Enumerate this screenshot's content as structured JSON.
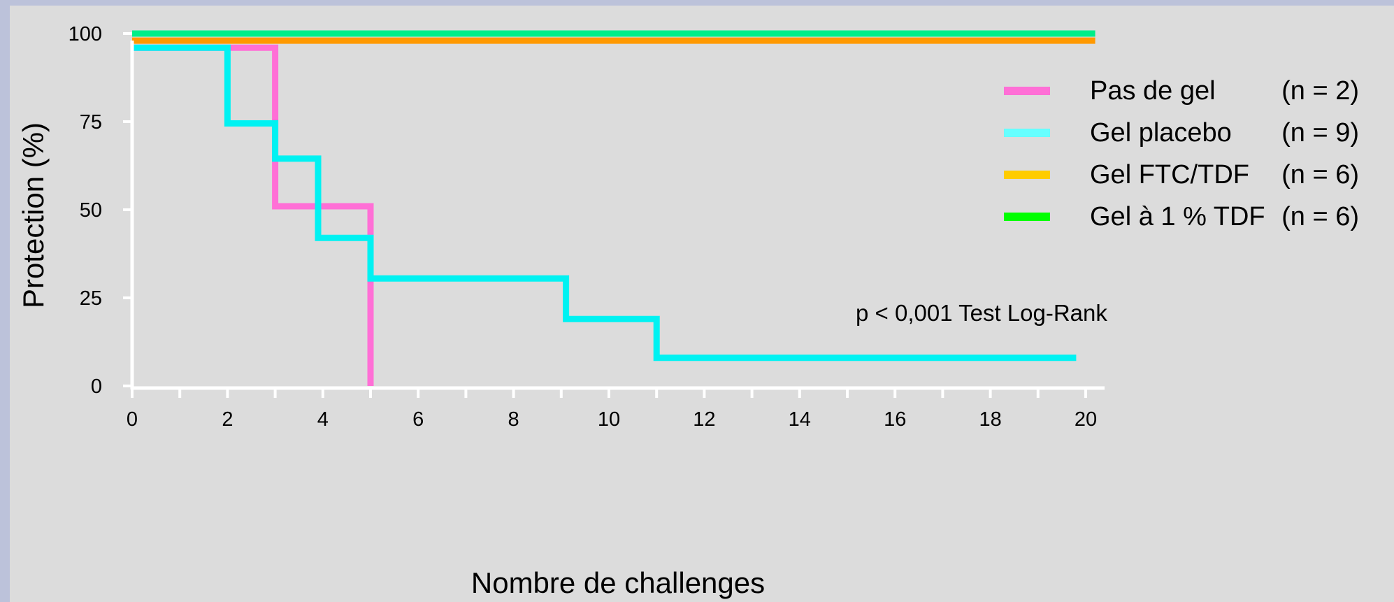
{
  "chart_data": {
    "type": "line",
    "step": true,
    "xlabel": "Nombre de challenges",
    "ylabel": "Protection (%)",
    "xlim": [
      0,
      20
    ],
    "ylim": [
      0,
      100
    ],
    "x_ticks": [
      "0",
      "2",
      "4",
      "6",
      "8",
      "10",
      "12",
      "14",
      "16",
      "18",
      "20"
    ],
    "y_ticks": [
      "0",
      "25",
      "50",
      "75",
      "100"
    ],
    "grid": false,
    "legend_position": "right",
    "annotation": "p < 0,001 Test Log-Rank",
    "series": [
      {
        "name": "Pas de gel",
        "n_label": "(n = 2)",
        "color": "#ff6fd6",
        "legend_color": "#ff6fd6",
        "points": [
          [
            0,
            96
          ],
          [
            3,
            96
          ],
          [
            3,
            51
          ],
          [
            5,
            51
          ],
          [
            5,
            0
          ]
        ]
      },
      {
        "name": "Gel placebo",
        "n_label": "(n = 9)",
        "color": "#00f2f2",
        "legend_color": "#66ffff",
        "points": [
          [
            0,
            96
          ],
          [
            2,
            96
          ],
          [
            2,
            74.5
          ],
          [
            3,
            74.5
          ],
          [
            3,
            64.5
          ],
          [
            3.9,
            64.5
          ],
          [
            3.9,
            42
          ],
          [
            5,
            42
          ],
          [
            5,
            30.5
          ],
          [
            9.1,
            30.5
          ],
          [
            9.1,
            19
          ],
          [
            11,
            19
          ],
          [
            11,
            8
          ],
          [
            19.8,
            8
          ]
        ]
      },
      {
        "name": "Gel FTC/TDF",
        "n_label": "(n = 6)",
        "color": "#ff9900",
        "legend_color": "#ffcc00",
        "points": [
          [
            0,
            98
          ],
          [
            20.2,
            98
          ]
        ]
      },
      {
        "name": "Gel à 1 % TDF",
        "n_label": "(n = 6)",
        "color": "#00ee88",
        "legend_color": "#00ff00",
        "points": [
          [
            0,
            100
          ],
          [
            20.2,
            100
          ]
        ]
      }
    ]
  }
}
